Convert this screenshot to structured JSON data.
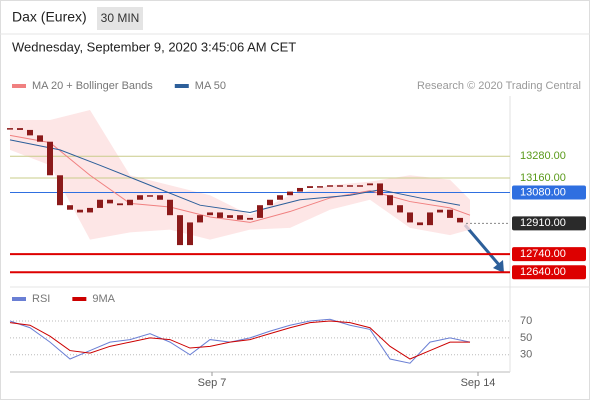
{
  "header": {
    "title": "Dax (Eurex)",
    "interval": "30 MIN",
    "date": "Wednesday, September 9, 2020 3:45:06 AM CET",
    "source": "Research © 2020 Trading Central"
  },
  "chart_data": [
    {
      "type": "candlestick",
      "color": "#8b1a1a",
      "xlim": [
        0,
        500
      ],
      "ylim": [
        12570,
        13590
      ],
      "x": [
        0,
        10,
        20,
        30,
        40,
        50,
        60,
        70,
        80,
        90,
        100,
        110,
        120,
        130,
        140,
        150,
        160,
        170,
        180,
        190,
        200,
        210,
        220,
        230,
        240,
        250,
        260,
        270,
        280,
        290,
        300,
        310,
        320,
        330,
        340,
        350,
        360,
        370,
        380,
        390,
        400,
        410,
        420,
        430,
        440,
        450
      ],
      "close": [
        13435,
        13425,
        13395,
        13360,
        13175,
        13010,
        12985,
        12970,
        12995,
        13040,
        13020,
        13010,
        13040,
        13065,
        13065,
        13040,
        12955,
        12790,
        12915,
        12955,
        12970,
        12940,
        12955,
        12930,
        12940,
        13010,
        13040,
        13065,
        13085,
        13105,
        13115,
        13115,
        13120,
        13115,
        13120,
        13120,
        13130,
        13065,
        13010,
        12970,
        12915,
        12900,
        12970,
        12985,
        12940,
        12915
      ],
      "overlays": [
        {
          "name": "MA 20 + Bollinger Bands",
          "color": "#f08080",
          "band_color": "#fde0e0",
          "x": [
            0,
            40,
            80,
            120,
            160,
            200,
            240,
            280,
            320,
            360,
            400,
            440,
            460
          ],
          "values": [
            13395,
            13355,
            13175,
            13020,
            13000,
            12945,
            12915,
            12975,
            13050,
            13090,
            13030,
            12995,
            12955
          ],
          "upper": [
            13480,
            13480,
            13535,
            13175,
            13120,
            13065,
            12955,
            13065,
            13120,
            13140,
            13175,
            13150,
            13040
          ],
          "lower": [
            13315,
            13230,
            12820,
            12860,
            12875,
            12820,
            12875,
            12885,
            12985,
            13040,
            12885,
            12845,
            12875
          ]
        },
        {
          "name": "MA 50",
          "color": "#2d5f9a",
          "x": [
            0,
            50,
            90,
            140,
            190,
            240,
            290,
            340,
            370,
            410,
            450
          ],
          "values": [
            13370,
            13315,
            13230,
            13120,
            13010,
            12970,
            13040,
            13065,
            13095,
            13050,
            13010
          ]
        }
      ],
      "levels": [
        {
          "value": 13280,
          "label": "13280.00",
          "color": "#c9cc8a",
          "text_color": "#5a9a1a",
          "style": "line"
        },
        {
          "value": 13160,
          "label": "13160.00",
          "color": "#c9cc8a",
          "text_color": "#5a9a1a",
          "style": "line"
        },
        {
          "value": 13080,
          "label": "13080.00",
          "color": "#2f6fe0",
          "text_color": "#ffffff",
          "style": "box"
        },
        {
          "value": 12910,
          "label": "12910.00",
          "color": "#2a2a2a",
          "text_color": "#ffffff",
          "style": "dotted"
        },
        {
          "value": 12740,
          "label": "12740.00",
          "color": "#dd0000",
          "text_color": "#ffffff",
          "style": "box"
        },
        {
          "value": 12640,
          "label": "12640.00",
          "color": "#dd0000",
          "text_color": "#ffffff",
          "style": "box"
        }
      ]
    },
    {
      "type": "line",
      "xlim": [
        0,
        500
      ],
      "ylim": [
        12,
        83
      ],
      "yticks": [
        70,
        50,
        30
      ],
      "xticks": [
        {
          "value": 202,
          "label": "Sep 7"
        },
        {
          "value": 468,
          "label": "Sep 14"
        }
      ],
      "series": [
        {
          "name": "RSI",
          "color": "#6a7fd4",
          "x": [
            0,
            20,
            40,
            60,
            80,
            100,
            120,
            140,
            160,
            180,
            200,
            220,
            240,
            260,
            280,
            300,
            320,
            340,
            360,
            380,
            400,
            420,
            440,
            460
          ],
          "values": [
            70,
            62,
            45,
            25,
            35,
            45,
            48,
            55,
            45,
            30,
            48,
            45,
            50,
            58,
            65,
            70,
            72,
            65,
            60,
            25,
            20,
            45,
            50,
            45
          ]
        },
        {
          "name": "9MA",
          "color": "#cc0000",
          "x": [
            0,
            20,
            40,
            60,
            80,
            100,
            120,
            140,
            160,
            180,
            200,
            220,
            240,
            260,
            280,
            300,
            320,
            340,
            360,
            380,
            400,
            420,
            440,
            460
          ],
          "values": [
            68,
            65,
            52,
            35,
            32,
            40,
            45,
            50,
            48,
            38,
            40,
            45,
            48,
            55,
            62,
            68,
            70,
            68,
            62,
            40,
            25,
            35,
            45,
            45
          ]
        }
      ]
    }
  ]
}
